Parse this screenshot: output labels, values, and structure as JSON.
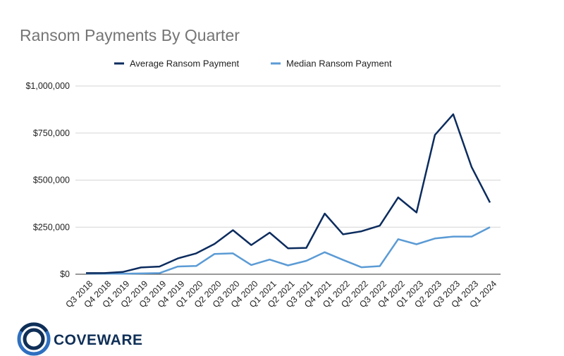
{
  "colors": {
    "average": "#0c2c5e",
    "median": "#5b9bd5",
    "title": "#757575",
    "grid": "#d6d6d6",
    "logo_dark": "#0f2f57",
    "logo_light": "#2f6fbf"
  },
  "logo": {
    "text": "COVEWARE",
    "icon": "coveware-ring-icon"
  },
  "chart_data": {
    "type": "line",
    "title": "Ransom Payments By Quarter",
    "xlabel": "",
    "ylabel": "",
    "ylim": [
      0,
      1000000
    ],
    "y_ticks": [
      0,
      250000,
      500000,
      750000,
      1000000
    ],
    "y_tick_labels": [
      "$0",
      "$250,000",
      "$500,000",
      "$750,000",
      "$1,000,000"
    ],
    "grid": true,
    "legend_position": "top",
    "categories": [
      "Q3 2018",
      "Q4 2018",
      "Q1 2019",
      "Q2 2019",
      "Q3 2019",
      "Q4 2019",
      "Q1 2020",
      "Q2 2020",
      "Q3 2020",
      "Q4 2020",
      "Q1 2021",
      "Q2 2021",
      "Q3 2021",
      "Q4 2021",
      "Q1 2022",
      "Q2 2022",
      "Q3 2022",
      "Q4 2022",
      "Q1 2023",
      "Q2 2023",
      "Q3 2023",
      "Q4 2023",
      "Q1 2024"
    ],
    "series": [
      {
        "name": "Average Ransom Payment",
        "color": "#0c2c5e",
        "values": [
          6000,
          6000,
          12000,
          36000,
          41000,
          84000,
          111000,
          161000,
          234000,
          155000,
          221000,
          138000,
          140000,
          322000,
          212000,
          228000,
          258000,
          408000,
          328000,
          740000,
          850000,
          569000,
          381000
        ]
      },
      {
        "name": "Median Ransom Payment",
        "color": "#5b9bd5",
        "values": [
          4000,
          3000,
          3000,
          4000,
          6000,
          41000,
          44000,
          108000,
          111000,
          49000,
          78000,
          47000,
          71000,
          117000,
          76000,
          37000,
          43000,
          186000,
          159000,
          190000,
          200000,
          200000,
          250000
        ]
      }
    ]
  }
}
